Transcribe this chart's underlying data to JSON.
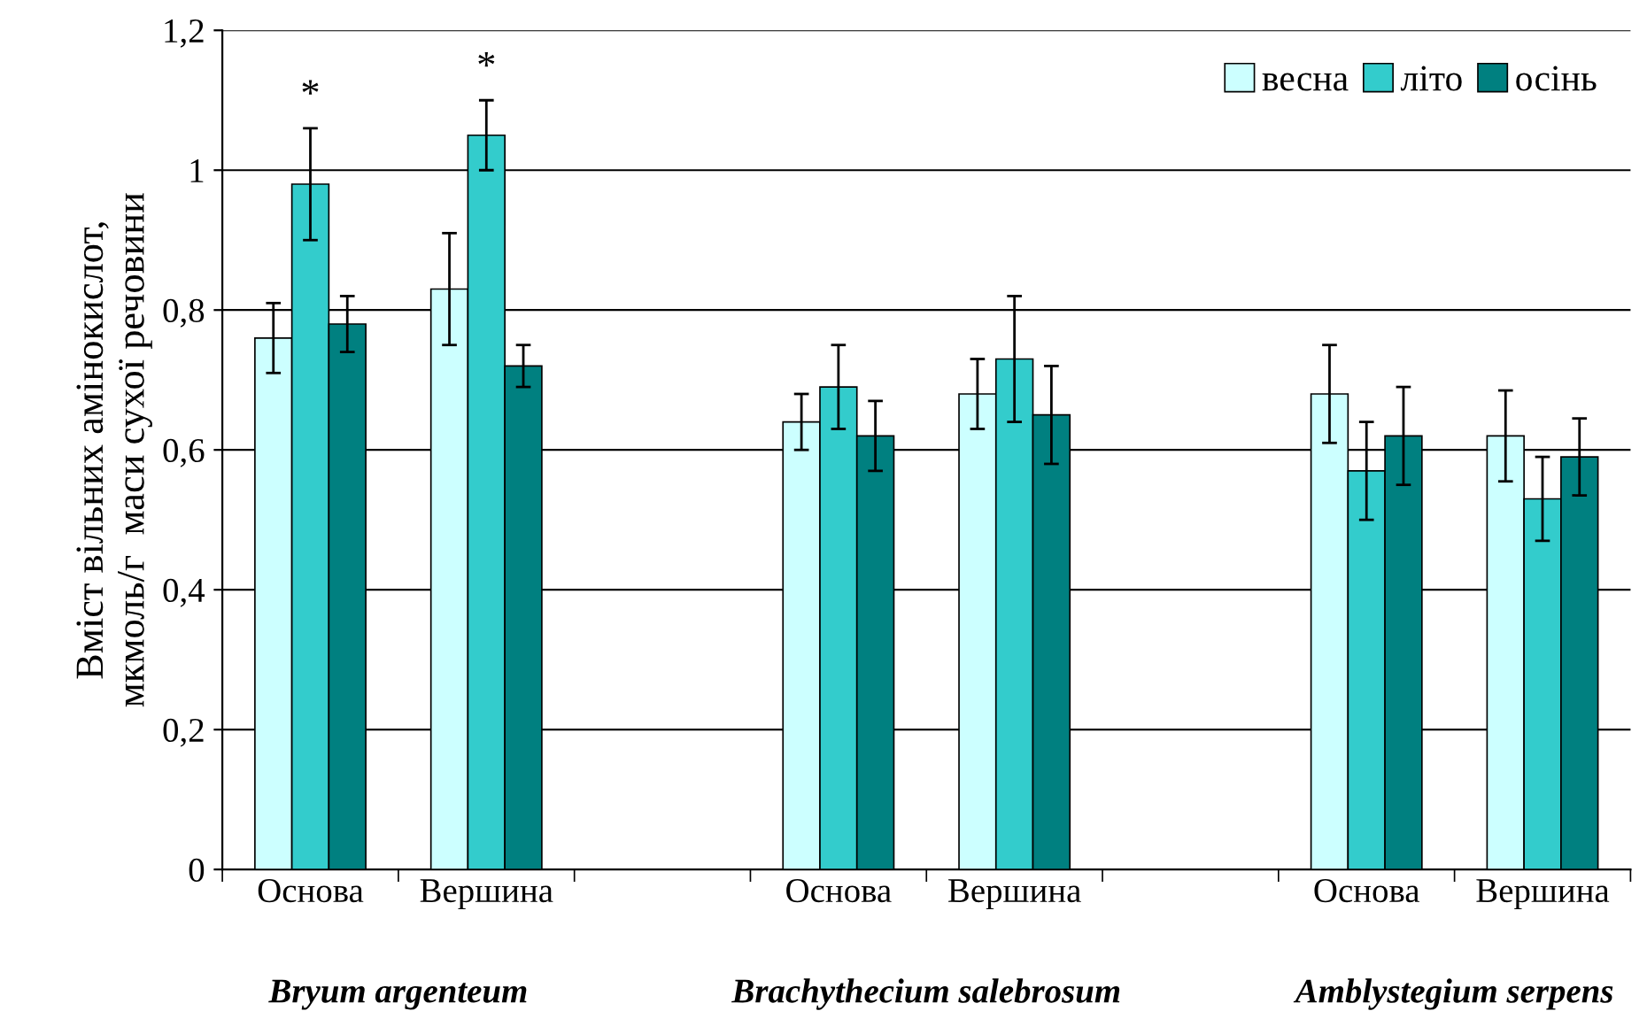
{
  "chart_data": {
    "type": "bar",
    "ylabel": "Вміст вільних амінокислот,\nмкмоль/г  маси сухої речовини",
    "categories": [
      "Основа",
      "Вершина",
      null,
      "Основа",
      "Вершина",
      null,
      "Основа",
      "Вершина"
    ],
    "series": [
      {
        "name": "весна",
        "color": "#ccffff",
        "values": [
          0.76,
          0.83,
          null,
          0.64,
          0.68,
          null,
          0.68,
          0.62
        ],
        "errors": [
          0.05,
          0.08,
          null,
          0.04,
          0.05,
          null,
          0.07,
          0.065
        ]
      },
      {
        "name": "літо",
        "color": "#33cccc",
        "values": [
          0.98,
          1.05,
          null,
          0.69,
          0.73,
          null,
          0.57,
          0.53
        ],
        "errors": [
          0.08,
          0.05,
          null,
          0.06,
          0.09,
          null,
          0.07,
          0.06
        ]
      },
      {
        "name": "осінь",
        "color": "#008080",
        "values": [
          0.78,
          0.72,
          null,
          0.62,
          0.65,
          null,
          0.62,
          0.59
        ],
        "errors": [
          0.04,
          0.03,
          null,
          0.05,
          0.07,
          null,
          0.07,
          0.055
        ]
      }
    ],
    "ylim": [
      0,
      1.2
    ],
    "yticks": [
      0,
      {
        "value": 0.2,
        "label": "0,2"
      },
      {
        "value": 0.4,
        "label": "0,4"
      },
      {
        "value": 0.6,
        "label": "0,6"
      },
      {
        "value": 0.8,
        "label": "0,8"
      },
      1,
      {
        "value": 1.2,
        "label": "1,2"
      }
    ],
    "grid": "y",
    "legend": "top right",
    "annotations": [
      "*",
      "*",
      "Bryum argenteum",
      "Brachythecium salebrosum",
      "Amblystegium serpens"
    ]
  }
}
